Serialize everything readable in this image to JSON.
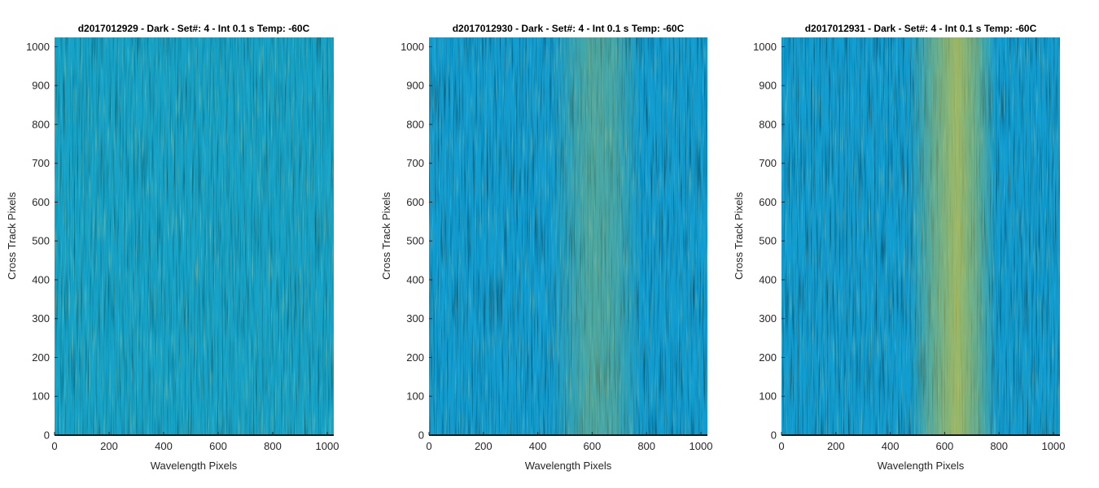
{
  "chart_data": [
    {
      "type": "heatmap",
      "title": "d2017012929 - Dark - Set#: 4 - Int 0.1 s Temp: -60C",
      "xlabel": "Wavelength Pixels",
      "ylabel": "Cross Track Pixels",
      "xlim": [
        0,
        1024
      ],
      "ylim": [
        0,
        1024
      ],
      "xticks": [
        0,
        200,
        400,
        600,
        800,
        1000
      ],
      "yticks": [
        0,
        100,
        200,
        300,
        400,
        500,
        600,
        700,
        800,
        900,
        1000
      ],
      "colormap": [
        "#0b8fd6",
        "#10a5c8",
        "#3aae9f",
        "#7cba6c",
        "#c8c145"
      ],
      "pattern": "uniform vertical streak noise"
    },
    {
      "type": "heatmap",
      "title": "d2017012930 - Dark - Set#: 4 - Int 0.1 s Temp: -60C",
      "xlabel": "Wavelength Pixels",
      "ylabel": "Cross Track Pixels",
      "xlim": [
        0,
        1024
      ],
      "ylim": [
        0,
        1024
      ],
      "xticks": [
        0,
        200,
        400,
        600,
        800,
        1000
      ],
      "yticks": [
        0,
        100,
        200,
        300,
        400,
        500,
        600,
        700,
        800,
        900,
        1000
      ],
      "colormap": [
        "#0b8fd6",
        "#10a5c8",
        "#3aae9f",
        "#7cba6c",
        "#c8c145"
      ],
      "pattern": "vertical streak noise, warmer band near x 550-700"
    },
    {
      "type": "heatmap",
      "title": "d2017012931 - Dark - Set#: 4 - Int 0.1 s Temp: -60C",
      "xlabel": "Wavelength Pixels",
      "ylabel": "Cross Track Pixels",
      "xlim": [
        0,
        1024
      ],
      "ylim": [
        0,
        1024
      ],
      "xticks": [
        0,
        200,
        400,
        600,
        800,
        1000
      ],
      "yticks": [
        0,
        100,
        200,
        300,
        400,
        500,
        600,
        700,
        800,
        900,
        1000
      ],
      "colormap": [
        "#0b8fd6",
        "#10a5c8",
        "#3aae9f",
        "#7cba6c",
        "#c8c145"
      ],
      "pattern": "vertical streak noise, strong warm band near x 580-720"
    }
  ]
}
